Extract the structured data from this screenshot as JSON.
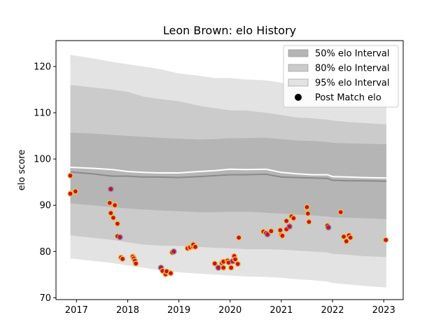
{
  "chart_data": {
    "type": "scatter",
    "title": "Leon Brown: elo History",
    "xlabel": "",
    "ylabel": "elo score",
    "xlim": [
      2016.6,
      2023.38
    ],
    "ylim": [
      69.6,
      125.6
    ],
    "x_ticks": [
      2017,
      2018,
      2019,
      2020,
      2021,
      2022,
      2023
    ],
    "x_tick_labels": [
      "2017",
      "2018",
      "2019",
      "2020",
      "2021",
      "2022",
      "2023"
    ],
    "y_ticks": [
      70,
      80,
      90,
      100,
      110,
      120
    ],
    "y_tick_labels": [
      "70",
      "80",
      "90",
      "100",
      "110",
      "120"
    ],
    "grid": false,
    "legend_position": "top-right",
    "colors": {
      "band_95": "#e3e3e3",
      "band_80": "#cbcbcb",
      "band_50": "#b5b5b5",
      "median_line": "#8a8a8a",
      "mean_line": "#ffffff",
      "point_fill": "#c8102e",
      "point_edge": "#f0c040",
      "point_edge_alt": "#8a8aa8"
    },
    "legend": [
      {
        "label": "50% elo Interval",
        "kind": "band_50"
      },
      {
        "label": "80% elo Interval",
        "kind": "band_80"
      },
      {
        "label": "95% elo Interval",
        "kind": "band_95"
      },
      {
        "label": "Post Match elo",
        "kind": "point"
      }
    ],
    "bands": {
      "x": [
        2016.88,
        2017.3,
        2017.7,
        2018.0,
        2018.3,
        2018.6,
        2019.0,
        2019.4,
        2019.7,
        2020.0,
        2020.3,
        2020.7,
        2021.0,
        2021.3,
        2021.6,
        2021.9,
        2022.0,
        2022.3,
        2022.6,
        2023.05
      ],
      "p95_upper": [
        122.5,
        121.8,
        121.0,
        120.5,
        120.0,
        119.5,
        118.5,
        118.0,
        117.5,
        117.5,
        117.2,
        117.0,
        116.5,
        115.5,
        115.0,
        114.0,
        113.5,
        113.0,
        112.7,
        112.3
      ],
      "p80_upper": [
        116.0,
        115.5,
        115.0,
        114.5,
        113.5,
        113.0,
        112.5,
        111.5,
        111.0,
        110.5,
        110.5,
        110.0,
        109.5,
        109.0,
        108.8,
        108.5,
        108.3,
        108.0,
        107.8,
        107.5
      ],
      "p50_upper": [
        105.7,
        105.5,
        105.2,
        105.0,
        104.8,
        104.6,
        104.4,
        104.2,
        104.3,
        104.5,
        104.5,
        104.6,
        104.3,
        104.0,
        103.9,
        103.7,
        103.5,
        103.4,
        103.3,
        103.2
      ],
      "p50_lower": [
        90.4,
        90.0,
        89.6,
        89.3,
        89.1,
        88.9,
        88.7,
        88.5,
        88.5,
        88.6,
        88.6,
        88.4,
        88.2,
        88.0,
        87.8,
        87.6,
        87.4,
        87.3,
        87.2,
        87.0
      ],
      "p80_lower": [
        83.5,
        83.0,
        82.5,
        82.0,
        81.5,
        81.3,
        81.2,
        81.0,
        80.8,
        80.7,
        80.5,
        80.5,
        80.4,
        80.2,
        80.0,
        79.8,
        79.5,
        79.3,
        79.0,
        78.8
      ],
      "p95_lower": [
        78.5,
        78.0,
        77.5,
        77.0,
        76.5,
        76.0,
        75.5,
        75.2,
        75.0,
        74.8,
        74.6,
        74.5,
        74.3,
        74.0,
        73.8,
        73.5,
        73.2,
        72.9,
        72.6,
        72.2
      ],
      "median": [
        97.2,
        96.8,
        96.3,
        96.3,
        96.1,
        96.1,
        96.0,
        96.2,
        96.4,
        96.6,
        96.6,
        96.7,
        96.1,
        96.0,
        95.9,
        95.8,
        95.4,
        95.3,
        95.3,
        95.2
      ],
      "mean": [
        98.2,
        98.0,
        97.7,
        97.3,
        97.1,
        97.0,
        97.0,
        97.3,
        97.5,
        97.8,
        97.7,
        97.8,
        97.1,
        96.8,
        96.6,
        96.6,
        96.2,
        96.1,
        96.0,
        95.9
      ]
    },
    "points": [
      {
        "x": 2016.88,
        "y": 96.4
      },
      {
        "x": 2016.88,
        "y": 92.5
      },
      {
        "x": 2016.98,
        "y": 93.0
      },
      {
        "x": 2017.67,
        "y": 93.5
      },
      {
        "x": 2017.65,
        "y": 90.5
      },
      {
        "x": 2017.75,
        "y": 90.0
      },
      {
        "x": 2017.67,
        "y": 88.3
      },
      {
        "x": 2017.72,
        "y": 87.3
      },
      {
        "x": 2017.8,
        "y": 86.0
      },
      {
        "x": 2017.8,
        "y": 83.3
      },
      {
        "x": 2017.85,
        "y": 83.1
      },
      {
        "x": 2017.87,
        "y": 78.7
      },
      {
        "x": 2017.9,
        "y": 78.4
      },
      {
        "x": 2018.1,
        "y": 78.9
      },
      {
        "x": 2018.12,
        "y": 78.5
      },
      {
        "x": 2018.14,
        "y": 78.0
      },
      {
        "x": 2018.16,
        "y": 77.4
      },
      {
        "x": 2018.65,
        "y": 76.5
      },
      {
        "x": 2018.68,
        "y": 75.8
      },
      {
        "x": 2018.74,
        "y": 75.1
      },
      {
        "x": 2018.8,
        "y": 75.5
      },
      {
        "x": 2018.76,
        "y": 75.7
      },
      {
        "x": 2018.84,
        "y": 75.3
      },
      {
        "x": 2018.87,
        "y": 79.8
      },
      {
        "x": 2018.9,
        "y": 80.0
      },
      {
        "x": 2019.17,
        "y": 80.7
      },
      {
        "x": 2019.22,
        "y": 80.9
      },
      {
        "x": 2019.27,
        "y": 81.1
      },
      {
        "x": 2019.28,
        "y": 81.5
      },
      {
        "x": 2019.32,
        "y": 81.0
      },
      {
        "x": 2019.7,
        "y": 77.4
      },
      {
        "x": 2019.77,
        "y": 76.5
      },
      {
        "x": 2019.84,
        "y": 77.5
      },
      {
        "x": 2019.87,
        "y": 77.8
      },
      {
        "x": 2019.87,
        "y": 76.5
      },
      {
        "x": 2019.95,
        "y": 78.0
      },
      {
        "x": 2019.97,
        "y": 77.6
      },
      {
        "x": 2020.02,
        "y": 76.5
      },
      {
        "x": 2020.05,
        "y": 77.9
      },
      {
        "x": 2020.08,
        "y": 79.0
      },
      {
        "x": 2020.1,
        "y": 78.3
      },
      {
        "x": 2020.15,
        "y": 77.3
      },
      {
        "x": 2020.17,
        "y": 83.0
      },
      {
        "x": 2020.65,
        "y": 84.3
      },
      {
        "x": 2020.7,
        "y": 84.0
      },
      {
        "x": 2020.73,
        "y": 83.7
      },
      {
        "x": 2020.8,
        "y": 84.4
      },
      {
        "x": 2020.98,
        "y": 84.6
      },
      {
        "x": 2021.0,
        "y": 83.6
      },
      {
        "x": 2021.02,
        "y": 83.4
      },
      {
        "x": 2021.1,
        "y": 84.8
      },
      {
        "x": 2021.1,
        "y": 86.6
      },
      {
        "x": 2021.16,
        "y": 85.4
      },
      {
        "x": 2021.2,
        "y": 87.6
      },
      {
        "x": 2021.24,
        "y": 87.2
      },
      {
        "x": 2021.5,
        "y": 89.6
      },
      {
        "x": 2021.52,
        "y": 88.2
      },
      {
        "x": 2021.54,
        "y": 86.4
      },
      {
        "x": 2021.9,
        "y": 85.6
      },
      {
        "x": 2021.92,
        "y": 85.2
      },
      {
        "x": 2022.16,
        "y": 88.5
      },
      {
        "x": 2022.22,
        "y": 83.2
      },
      {
        "x": 2022.27,
        "y": 82.2
      },
      {
        "x": 2022.32,
        "y": 83.5
      },
      {
        "x": 2022.35,
        "y": 83.0
      },
      {
        "x": 2023.04,
        "y": 82.5
      }
    ]
  }
}
